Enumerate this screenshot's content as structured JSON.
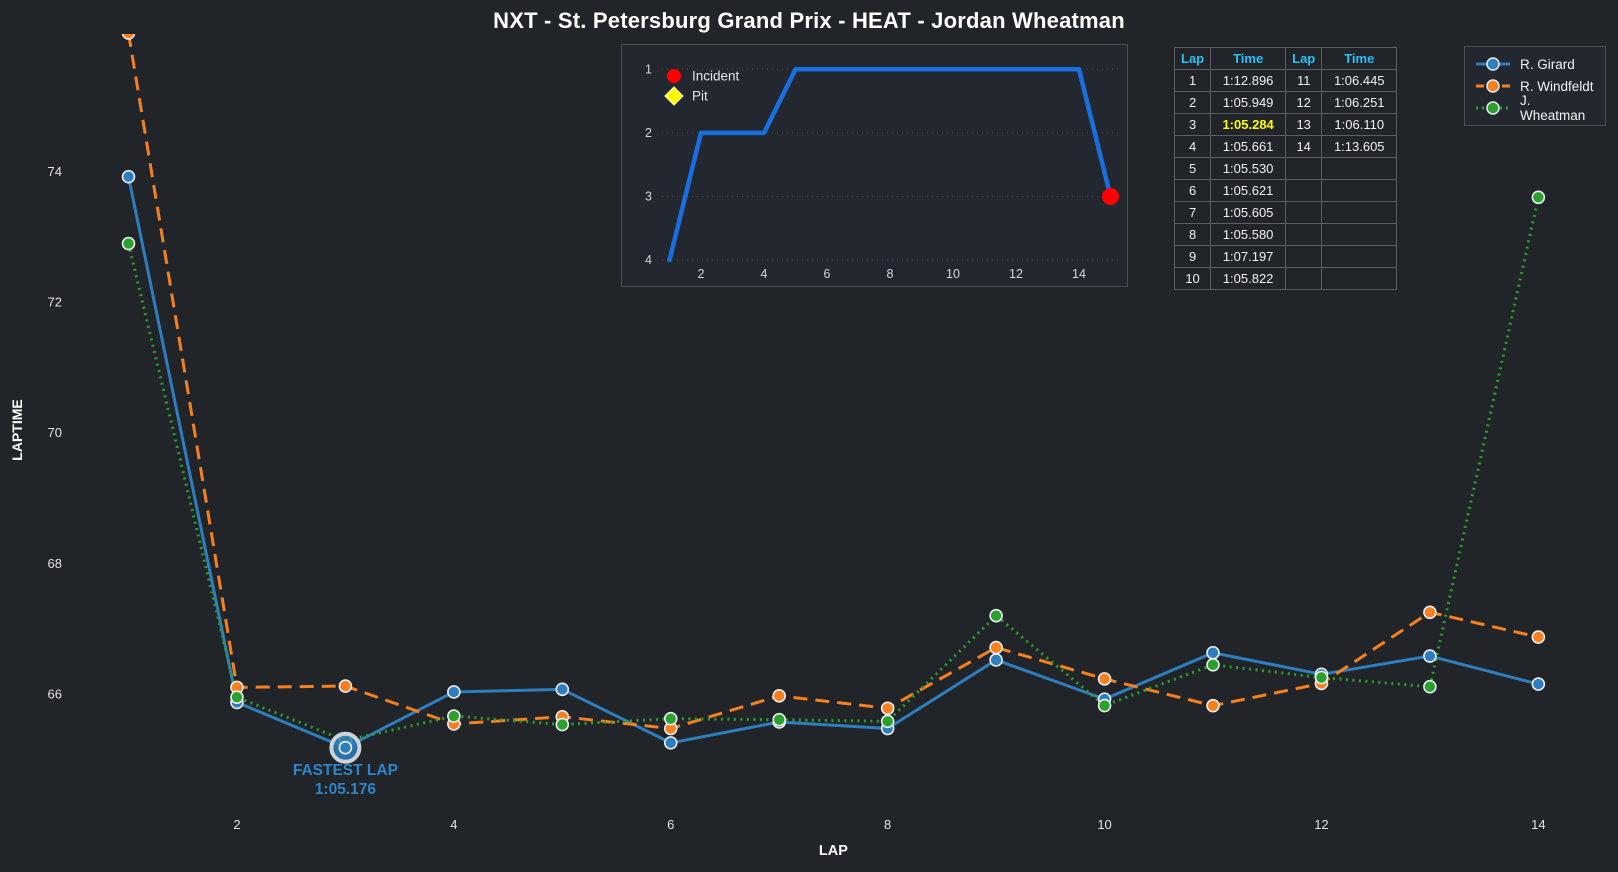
{
  "title": "NXT - St. Petersburg Grand Prix - HEAT - Jordan Wheatman",
  "colors": {
    "background": "#212429",
    "panel_border": "#4a4e55",
    "tick_text": "#e3e3e3",
    "axis_label": "#ffffff",
    "table_header": "#27c3f5",
    "fastest_yellow": "#ffff00",
    "incident_red": "#ff0000",
    "pit_yellow": "#ffff00",
    "annotation_blue": "#2e86c8"
  },
  "legend": {
    "items": [
      {
        "label": "R. Girard",
        "color": "#2e7ebd",
        "style": "solid"
      },
      {
        "label": "R. Windfeldt",
        "color": "#f7801e",
        "style": "dashed"
      },
      {
        "label": "J. Wheatman",
        "color": "#2ca02c",
        "style": "dotted"
      }
    ]
  },
  "lap_table": {
    "headers": [
      "Lap",
      "Time",
      "Lap",
      "Time"
    ],
    "fastest_value": "1:05.284",
    "rows": [
      [
        "1",
        "1:12.896",
        "11",
        "1:06.445"
      ],
      [
        "2",
        "1:05.949",
        "12",
        "1:06.251"
      ],
      [
        "3",
        "1:05.284",
        "13",
        "1:06.110"
      ],
      [
        "4",
        "1:05.661",
        "14",
        "1:13.605"
      ],
      [
        "5",
        "1:05.530",
        "",
        ""
      ],
      [
        "6",
        "1:05.621",
        "",
        ""
      ],
      [
        "7",
        "1:05.605",
        "",
        ""
      ],
      [
        "8",
        "1:05.580",
        "",
        ""
      ],
      [
        "9",
        "1:07.197",
        "",
        ""
      ],
      [
        "10",
        "1:05.822",
        "",
        ""
      ]
    ]
  },
  "chart_data": [
    {
      "type": "line",
      "name": "laptime-chart",
      "title": "NXT - St. Petersburg Grand Prix - HEAT - Jordan Wheatman",
      "xlabel": "LAP",
      "ylabel": "LAPTIME",
      "x": [
        1,
        2,
        3,
        4,
        5,
        6,
        7,
        8,
        9,
        10,
        11,
        12,
        13,
        14
      ],
      "x_ticks": [
        2,
        4,
        6,
        8,
        10,
        12,
        14
      ],
      "y_ticks": [
        66,
        68,
        70,
        72,
        74
      ],
      "xlim": [
        0.8,
        14.8
      ],
      "ylim": [
        64.5,
        76.1
      ],
      "grid": false,
      "series": [
        {
          "name": "R. Girard",
          "color": "#2e7ebd",
          "line_style": "solid",
          "values": [
            73.92,
            65.87,
            65.176,
            66.03,
            66.07,
            65.25,
            65.57,
            65.47,
            66.52,
            65.92,
            66.63,
            66.3,
            66.58,
            66.15
          ]
        },
        {
          "name": "R. Windfeldt",
          "color": "#f7801e",
          "line_style": "dashed",
          "values": [
            76.12,
            66.1,
            66.12,
            65.54,
            65.65,
            65.47,
            65.97,
            65.78,
            66.71,
            66.23,
            65.82,
            66.16,
            67.25,
            66.87
          ]
        },
        {
          "name": "J. Wheatman",
          "color": "#2ca02c",
          "line_style": "dotted",
          "values": [
            72.896,
            65.949,
            65.284,
            65.661,
            65.53,
            65.621,
            65.605,
            65.58,
            67.197,
            65.822,
            66.445,
            66.251,
            66.11,
            73.605
          ]
        }
      ],
      "annotation": {
        "line1": "FASTEST LAP",
        "line2": "1:05.176",
        "lap": 3,
        "value": 65.176,
        "series": "R. Girard",
        "color": "#2e86c8"
      }
    },
    {
      "type": "line",
      "name": "position-inset-chart",
      "x_ticks": [
        2,
        4,
        6,
        8,
        10,
        12,
        14
      ],
      "y_ticks": [
        1,
        2,
        3,
        4
      ],
      "y_inverted": true,
      "line_color": "#1a6fe0",
      "x": [
        1,
        2,
        3,
        4,
        5,
        6,
        7,
        8,
        9,
        10,
        11,
        12,
        13,
        14,
        15
      ],
      "values": [
        4,
        2,
        2,
        2,
        1,
        1,
        1,
        1,
        1,
        1,
        1,
        1,
        1,
        1,
        3
      ],
      "incident_marker": {
        "x": 15,
        "y": 3,
        "color": "#ff0000"
      },
      "legend": [
        {
          "label": "Incident",
          "shape": "circle",
          "color": "#ff0000"
        },
        {
          "label": "Pit",
          "shape": "diamond",
          "color": "#ffff00"
        }
      ]
    }
  ]
}
